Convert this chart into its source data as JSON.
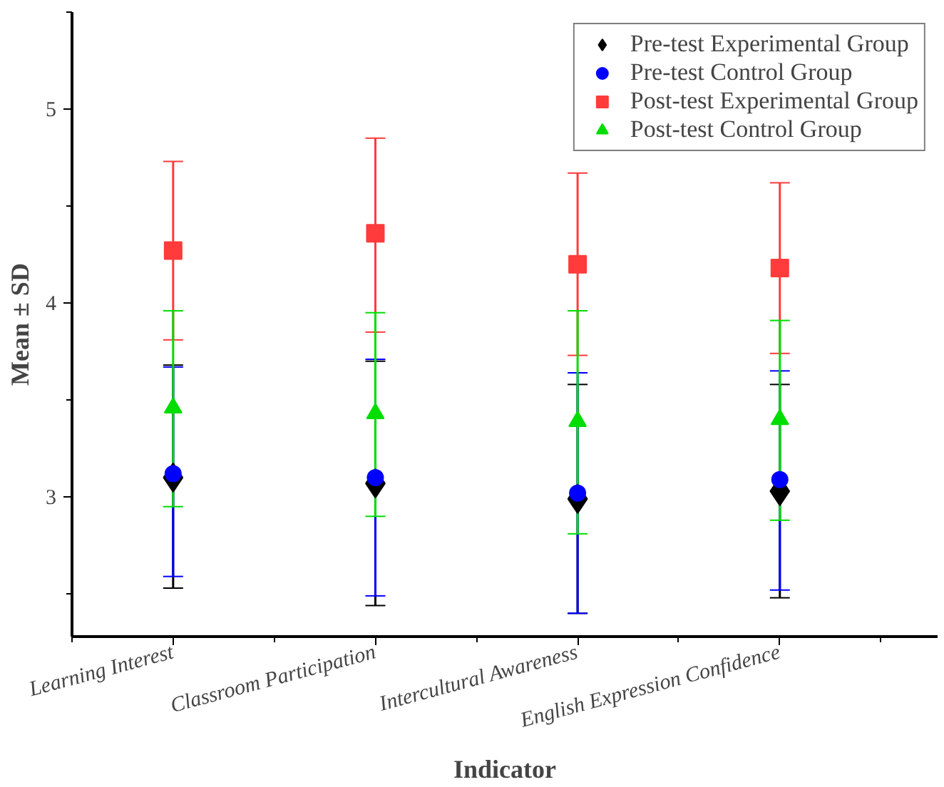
{
  "chart_data": {
    "type": "scatter",
    "xlabel": "Indicator",
    "ylabel": "Mean ± SD",
    "categories": [
      "Learning Interest",
      "Classroom Participation",
      "Intercultural Awareness",
      "English Expression Confidence"
    ],
    "ylim": [
      2.28,
      5.5
    ],
    "yticks": [
      3,
      4,
      5
    ],
    "grid": false,
    "legend": "top right",
    "series": [
      {
        "name": "Pre-test Experimental Group",
        "color": "#000000",
        "marker": "diamond",
        "values": [
          3.1,
          3.07,
          2.99,
          3.03
        ],
        "errors": [
          [
            2.53,
            3.68
          ],
          [
            2.44,
            3.7
          ],
          [
            2.4,
            3.58
          ],
          [
            2.48,
            3.58
          ]
        ]
      },
      {
        "name": "Pre-test Control Group",
        "color": "#0000ff",
        "marker": "circle",
        "values": [
          3.12,
          3.1,
          3.02,
          3.09
        ],
        "errors": [
          [
            2.59,
            3.67
          ],
          [
            2.49,
            3.71
          ],
          [
            2.4,
            3.64
          ],
          [
            2.52,
            3.65
          ]
        ]
      },
      {
        "name": "Post-test Experimental Group",
        "color": "#ff3b3b",
        "marker": "square",
        "values": [
          4.27,
          4.36,
          4.2,
          4.18
        ],
        "errors": [
          [
            3.81,
            4.73
          ],
          [
            3.85,
            4.85
          ],
          [
            3.73,
            4.67
          ],
          [
            3.74,
            4.62
          ]
        ]
      },
      {
        "name": "Post-test Control Group",
        "color": "#00dd00",
        "marker": "triangle",
        "values": [
          3.46,
          3.43,
          3.39,
          3.4
        ],
        "errors": [
          [
            2.95,
            3.96
          ],
          [
            2.9,
            3.95
          ],
          [
            2.81,
            3.96
          ],
          [
            2.88,
            3.91
          ]
        ]
      }
    ]
  }
}
